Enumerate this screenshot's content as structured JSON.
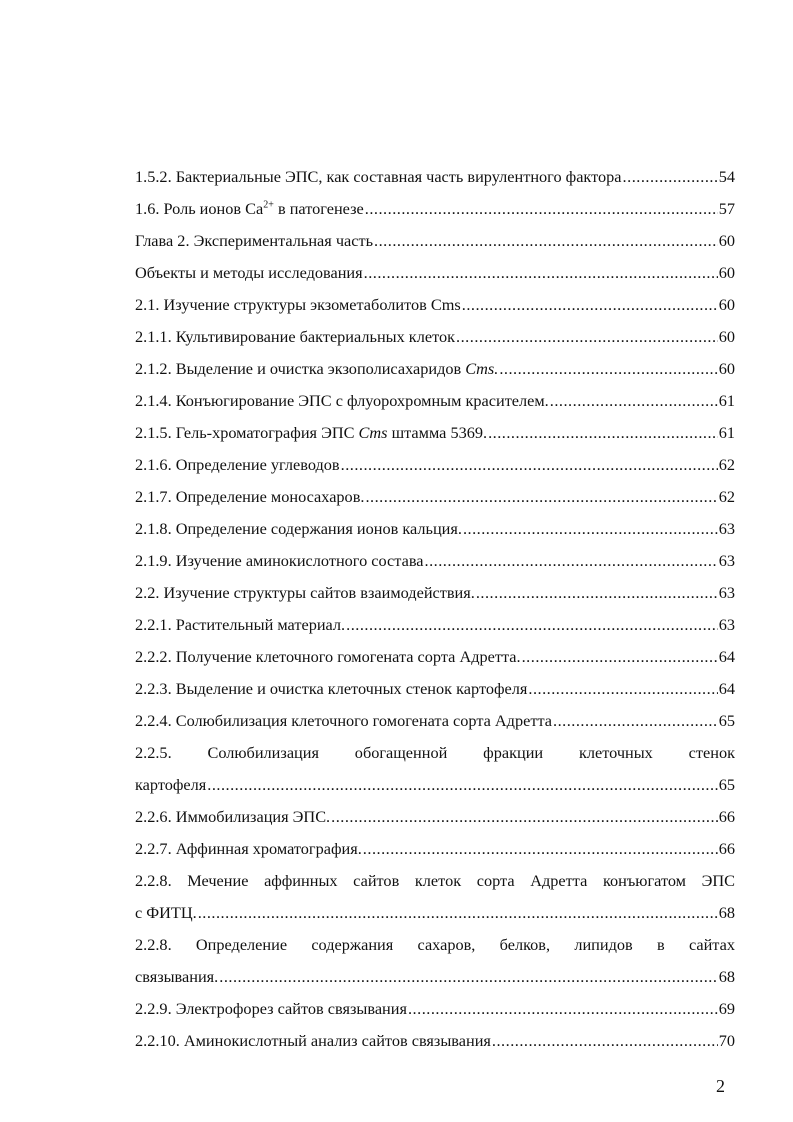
{
  "toc": {
    "entries": [
      {
        "lines": [
          [
            {
              "text": "1.5.2. Бактериальные ЭПС, как составная часть вирулентного фактора"
            }
          ]
        ],
        "page": 54
      },
      {
        "lines": [
          [
            {
              "text": "1.6. Роль ионов Ca"
            },
            {
              "text": "2+",
              "style": "sup"
            },
            {
              "text": " в патогенезе"
            }
          ]
        ],
        "page": 57
      },
      {
        "lines": [
          [
            {
              "text": "Глава 2. Экспериментальная часть"
            }
          ]
        ],
        "page": 60
      },
      {
        "lines": [
          [
            {
              "text": "Объекты и методы исследования"
            }
          ]
        ],
        "page": 60
      },
      {
        "lines": [
          [
            {
              "text": "2.1. Изучение структуры экзометаболитов Cms"
            }
          ]
        ],
        "page": 60
      },
      {
        "lines": [
          [
            {
              "text": "2.1.1. Культивирование бактериальных клеток"
            }
          ]
        ],
        "page": 60
      },
      {
        "lines": [
          [
            {
              "text": "2.1.2. Выделение и очистка экзополисахаридов "
            },
            {
              "text": "Cms.",
              "style": "italic"
            }
          ]
        ],
        "page": 60
      },
      {
        "lines": [
          [
            {
              "text": "2.1.4. Конъюгирование ЭПС с флуорохромным красителем."
            }
          ]
        ],
        "page": 61
      },
      {
        "lines": [
          [
            {
              "text": "2.1.5. Гель-хроматография ЭПС "
            },
            {
              "text": "Cms",
              "style": "italic"
            },
            {
              "text": " штамма 5369."
            }
          ]
        ],
        "page": 61
      },
      {
        "lines": [
          [
            {
              "text": "2.1.6. Определение углеводов"
            }
          ]
        ],
        "page": 62
      },
      {
        "lines": [
          [
            {
              "text": "2.1.7. Определение моносахаров."
            }
          ]
        ],
        "page": 62
      },
      {
        "lines": [
          [
            {
              "text": "2.1.8. Определение содержания ионов кальция."
            }
          ]
        ],
        "page": 63
      },
      {
        "lines": [
          [
            {
              "text": "2.1.9. Изучение аминокислотного состава"
            }
          ]
        ],
        "page": 63
      },
      {
        "lines": [
          [
            {
              "text": "2.2. Изучение структуры сайтов взаимодействия."
            }
          ]
        ],
        "page": 63
      },
      {
        "lines": [
          [
            {
              "text": "2.2.1. Растительный материал."
            }
          ]
        ],
        "page": 63
      },
      {
        "lines": [
          [
            {
              "text": "2.2.2. Получение клеточного гомогената сорта Адретта."
            }
          ]
        ],
        "page": 64
      },
      {
        "lines": [
          [
            {
              "text": "2.2.3. Выделение и очистка клеточных стенок картофеля"
            }
          ]
        ],
        "page": 64
      },
      {
        "lines": [
          [
            {
              "text": "2.2.4. Солюбилизация клеточного гомогената сорта Адретта"
            }
          ]
        ],
        "page": 65
      },
      {
        "lines": [
          [
            {
              "text": "2.2.5. Солюбилизация обогащенной фракции клеточных стенок"
            }
          ],
          [
            {
              "text": "картофеля"
            }
          ]
        ],
        "page": 65
      },
      {
        "lines": [
          [
            {
              "text": "2.2.6. Иммобилизация ЭПС."
            }
          ]
        ],
        "page": 66
      },
      {
        "lines": [
          [
            {
              "text": "2.2.7. Аффинная хроматография."
            }
          ]
        ],
        "page": 66
      },
      {
        "lines": [
          [
            {
              "text": "2.2.8. Мечение аффинных сайтов клеток сорта Адретта конъюгатом ЭПС"
            }
          ],
          [
            {
              "text": "с ФИТЦ."
            }
          ]
        ],
        "page": 68
      },
      {
        "lines": [
          [
            {
              "text": "2.2.8. Определение содержания сахаров, белков, липидов в сайтах"
            }
          ],
          [
            {
              "text": "связывания."
            }
          ]
        ],
        "page": 68
      },
      {
        "lines": [
          [
            {
              "text": "2.2.9. Электрофорез сайтов связывания"
            }
          ]
        ],
        "page": 69
      },
      {
        "lines": [
          [
            {
              "text": "2.2.10. Аминокислотный анализ сайтов связывания"
            }
          ]
        ],
        "page": 70
      }
    ],
    "page_number": 2
  }
}
